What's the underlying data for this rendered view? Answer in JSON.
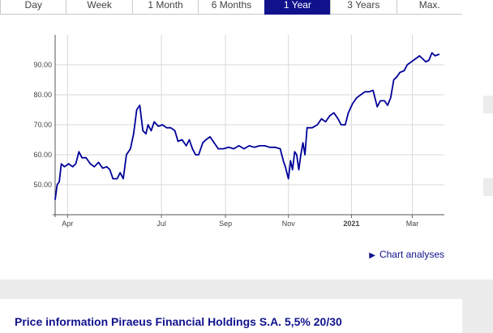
{
  "tabs": [
    {
      "label": "Day",
      "active": false
    },
    {
      "label": "Week",
      "active": false
    },
    {
      "label": "1 Month",
      "active": false
    },
    {
      "label": "6 Months",
      "active": false
    },
    {
      "label": "1 Year",
      "active": true
    },
    {
      "label": "3 Years",
      "active": false
    },
    {
      "label": "Max.",
      "active": false
    }
  ],
  "chart_link": {
    "label": "Chart analyses"
  },
  "section": {
    "title": "Price information Piraeus Financial Holdings S.A. 5,5% 20/30"
  },
  "colors": {
    "accent": "#10128c",
    "line": "#000099",
    "grid": "#d9d9d9"
  },
  "chart_data": {
    "type": "line",
    "title": "",
    "xlabel": "",
    "ylabel": "",
    "ylim": [
      40,
      100
    ],
    "yticks": [
      "50.00",
      "60.00",
      "70.00",
      "80.00",
      "90.00"
    ],
    "xticks": [
      {
        "label": "Apr",
        "date": "2020-04-01",
        "bold": false
      },
      {
        "label": "Jul",
        "date": "2020-07-01",
        "bold": false
      },
      {
        "label": "Sep",
        "date": "2020-09-01",
        "bold": false
      },
      {
        "label": "Nov",
        "date": "2020-11-01",
        "bold": false
      },
      {
        "label": "2021",
        "date": "2021-01-01",
        "bold": true
      },
      {
        "label": "Mar",
        "date": "2021-03-01",
        "bold": false
      }
    ],
    "grid": true,
    "legend": "none",
    "xlim": [
      "2020-03-20",
      "2021-04-01"
    ],
    "series": [
      {
        "name": "",
        "points": [
          [
            "2020-03-20",
            45
          ],
          [
            "2020-03-22",
            50
          ],
          [
            "2020-03-24",
            51
          ],
          [
            "2020-03-26",
            57
          ],
          [
            "2020-03-29",
            56
          ],
          [
            "2020-04-02",
            57
          ],
          [
            "2020-04-06",
            56
          ],
          [
            "2020-04-09",
            57
          ],
          [
            "2020-04-12",
            61
          ],
          [
            "2020-04-15",
            59
          ],
          [
            "2020-04-19",
            59
          ],
          [
            "2020-04-23",
            57
          ],
          [
            "2020-04-27",
            56
          ],
          [
            "2020-05-01",
            57.5
          ],
          [
            "2020-05-05",
            55.5
          ],
          [
            "2020-05-09",
            56
          ],
          [
            "2020-05-12",
            55
          ],
          [
            "2020-05-15",
            52
          ],
          [
            "2020-05-19",
            52
          ],
          [
            "2020-05-22",
            54
          ],
          [
            "2020-05-25",
            52
          ],
          [
            "2020-05-28",
            60
          ],
          [
            "2020-06-01",
            62
          ],
          [
            "2020-06-04",
            67
          ],
          [
            "2020-06-07",
            75
          ],
          [
            "2020-06-10",
            76.5
          ],
          [
            "2020-06-13",
            68
          ],
          [
            "2020-06-16",
            67
          ],
          [
            "2020-06-18",
            70
          ],
          [
            "2020-06-21",
            68
          ],
          [
            "2020-06-24",
            71
          ],
          [
            "2020-06-28",
            69.5
          ],
          [
            "2020-07-02",
            70
          ],
          [
            "2020-07-06",
            69
          ],
          [
            "2020-07-10",
            69
          ],
          [
            "2020-07-14",
            68
          ],
          [
            "2020-07-17",
            64.5
          ],
          [
            "2020-07-21",
            65
          ],
          [
            "2020-07-25",
            63
          ],
          [
            "2020-07-28",
            65
          ],
          [
            "2020-07-31",
            62
          ],
          [
            "2020-08-03",
            60
          ],
          [
            "2020-08-06",
            60
          ],
          [
            "2020-08-10",
            64
          ],
          [
            "2020-08-13",
            65
          ],
          [
            "2020-08-17",
            66
          ],
          [
            "2020-08-21",
            64
          ],
          [
            "2020-08-25",
            62
          ],
          [
            "2020-08-30",
            62
          ],
          [
            "2020-09-04",
            62.5
          ],
          [
            "2020-09-09",
            62
          ],
          [
            "2020-09-14",
            63
          ],
          [
            "2020-09-19",
            62
          ],
          [
            "2020-09-24",
            63
          ],
          [
            "2020-09-29",
            62.5
          ],
          [
            "2020-10-04",
            63
          ],
          [
            "2020-10-09",
            63
          ],
          [
            "2020-10-14",
            62.5
          ],
          [
            "2020-10-19",
            62.5
          ],
          [
            "2020-10-24",
            62
          ],
          [
            "2020-10-27",
            58
          ],
          [
            "2020-10-29",
            56
          ],
          [
            "2020-11-01",
            52
          ],
          [
            "2020-11-03",
            58
          ],
          [
            "2020-11-05",
            55
          ],
          [
            "2020-11-07",
            61
          ],
          [
            "2020-11-09",
            60
          ],
          [
            "2020-11-11",
            55
          ],
          [
            "2020-11-13",
            60
          ],
          [
            "2020-11-15",
            64
          ],
          [
            "2020-11-17",
            60
          ],
          [
            "2020-11-19",
            69
          ],
          [
            "2020-11-24",
            69
          ],
          [
            "2020-11-29",
            70
          ],
          [
            "2020-12-03",
            72
          ],
          [
            "2020-12-07",
            71
          ],
          [
            "2020-12-11",
            73
          ],
          [
            "2020-12-15",
            74
          ],
          [
            "2020-12-19",
            72
          ],
          [
            "2020-12-22",
            70
          ],
          [
            "2020-12-26",
            70
          ],
          [
            "2020-12-29",
            74
          ],
          [
            "2021-01-02",
            77
          ],
          [
            "2021-01-06",
            79
          ],
          [
            "2021-01-10",
            80
          ],
          [
            "2021-01-14",
            81
          ],
          [
            "2021-01-18",
            81
          ],
          [
            "2021-01-22",
            81.5
          ],
          [
            "2021-01-26",
            76
          ],
          [
            "2021-01-29",
            78
          ],
          [
            "2021-02-02",
            78
          ],
          [
            "2021-02-05",
            76.5
          ],
          [
            "2021-02-08",
            79
          ],
          [
            "2021-02-11",
            85
          ],
          [
            "2021-02-14",
            86
          ],
          [
            "2021-02-17",
            87.5
          ],
          [
            "2021-02-21",
            88
          ],
          [
            "2021-02-24",
            90
          ],
          [
            "2021-02-28",
            91
          ],
          [
            "2021-03-04",
            92
          ],
          [
            "2021-03-08",
            93
          ],
          [
            "2021-03-11",
            92
          ],
          [
            "2021-03-14",
            91
          ],
          [
            "2021-03-17",
            91.5
          ],
          [
            "2021-03-20",
            94
          ],
          [
            "2021-03-23",
            93
          ],
          [
            "2021-03-27",
            93.5
          ]
        ]
      }
    ]
  }
}
